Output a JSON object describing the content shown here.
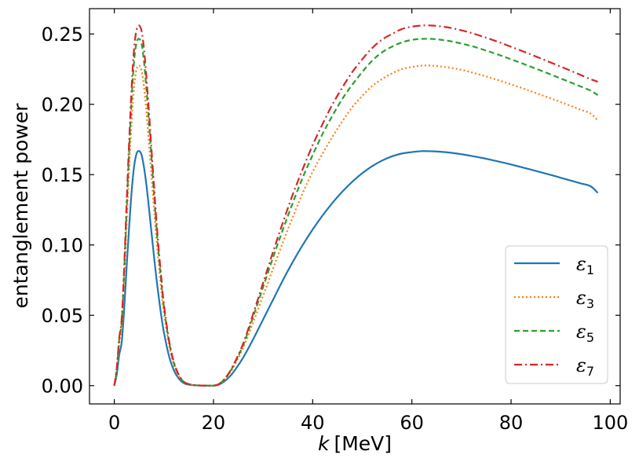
{
  "chart_data": {
    "type": "line",
    "title": "",
    "xlabel_var": "k",
    "xlabel_unit": "[MeV]",
    "ylabel": "entanglement power",
    "xlim": [
      -5,
      102
    ],
    "ylim": [
      -0.013,
      0.268
    ],
    "xticks": [
      0,
      20,
      40,
      60,
      80,
      100
    ],
    "xtick_labels": [
      "0",
      "20",
      "40",
      "60",
      "80",
      "100"
    ],
    "yticks": [
      0.0,
      0.05,
      0.1,
      0.15,
      0.2,
      0.25
    ],
    "ytick_labels": [
      "0.00",
      "0.05",
      "0.10",
      "0.15",
      "0.20",
      "0.25"
    ],
    "legend_position": "lower-right",
    "x": [
      0,
      0.5,
      1,
      1.5,
      2,
      2.5,
      3,
      3.5,
      4,
      4.5,
      5,
      5.5,
      6,
      6.5,
      7,
      7.5,
      8,
      8.5,
      9,
      9.5,
      10,
      11,
      12,
      13,
      14,
      15,
      16,
      17,
      18,
      19,
      19.5,
      20,
      21,
      22,
      23,
      24,
      26,
      28,
      30,
      32,
      34,
      36,
      38,
      40,
      42,
      44,
      46,
      48,
      50,
      52,
      54,
      56,
      58,
      60,
      62,
      64,
      66,
      68,
      70,
      72,
      74,
      76,
      78,
      80,
      82,
      84,
      86,
      88,
      90,
      92,
      94,
      96,
      97.5
    ],
    "series": [
      {
        "name": "ε",
        "subscript": "1",
        "color": "#1f77b4",
        "dash": "solid",
        "values": [
          0.0,
          0.008,
          0.022,
          0.031,
          0.055,
          0.085,
          0.113,
          0.138,
          0.156,
          0.165,
          0.1668,
          0.164,
          0.155,
          0.142,
          0.126,
          0.109,
          0.092,
          0.076,
          0.062,
          0.049,
          0.038,
          0.0215,
          0.011,
          0.005,
          0.0018,
          0.0007,
          0.0003,
          0.0001,
          3e-05,
          0.0,
          0.0,
          0.0,
          0.0006,
          0.0025,
          0.0055,
          0.0095,
          0.02,
          0.033,
          0.047,
          0.061,
          0.075,
          0.088,
          0.1,
          0.111,
          0.121,
          0.13,
          0.138,
          0.145,
          0.151,
          0.156,
          0.16,
          0.163,
          0.165,
          0.166,
          0.1667,
          0.1666,
          0.1662,
          0.1655,
          0.1645,
          0.1633,
          0.162,
          0.1605,
          0.1589,
          0.1572,
          0.1554,
          0.1536,
          0.1517,
          0.1498,
          0.1478,
          0.1458,
          0.1438,
          0.1418,
          0.137
        ]
      },
      {
        "name": "ε",
        "subscript": "3",
        "color": "#ff7f0e",
        "dash": "dotted",
        "values": [
          0.0,
          0.011,
          0.03,
          0.042,
          0.075,
          0.116,
          0.154,
          0.188,
          0.213,
          0.225,
          0.2275,
          0.224,
          0.212,
          0.194,
          0.172,
          0.149,
          0.126,
          0.104,
          0.085,
          0.067,
          0.052,
          0.0295,
          0.015,
          0.0068,
          0.0025,
          0.001,
          0.0004,
          0.00014,
          4e-05,
          0.0,
          0.0,
          0.0,
          0.0008,
          0.0034,
          0.0075,
          0.013,
          0.027,
          0.045,
          0.064,
          0.083,
          0.102,
          0.12,
          0.137,
          0.152,
          0.165,
          0.177,
          0.188,
          0.198,
          0.206,
          0.213,
          0.218,
          0.222,
          0.225,
          0.2265,
          0.2275,
          0.2275,
          0.2268,
          0.2258,
          0.2245,
          0.2228,
          0.2208,
          0.2187,
          0.2165,
          0.2142,
          0.2118,
          0.2093,
          0.2068,
          0.2042,
          0.2016,
          0.1989,
          0.1962,
          0.1935,
          0.1885
        ]
      },
      {
        "name": "ε",
        "subscript": "5",
        "color": "#2ca02c",
        "dash": "dashed",
        "values": [
          0.0,
          0.012,
          0.033,
          0.046,
          0.082,
          0.126,
          0.167,
          0.204,
          0.231,
          0.244,
          0.2465,
          0.243,
          0.23,
          0.21,
          0.187,
          0.162,
          0.137,
          0.113,
          0.092,
          0.073,
          0.056,
          0.032,
          0.0163,
          0.0074,
          0.0027,
          0.0011,
          0.00045,
          0.00015,
          4e-05,
          0.0,
          0.0,
          0.0,
          0.0009,
          0.0037,
          0.0081,
          0.014,
          0.029,
          0.049,
          0.07,
          0.091,
          0.111,
          0.13,
          0.148,
          0.164,
          0.179,
          0.192,
          0.204,
          0.214,
          0.223,
          0.231,
          0.237,
          0.241,
          0.244,
          0.2458,
          0.2465,
          0.2465,
          0.2458,
          0.2447,
          0.2432,
          0.2414,
          0.2393,
          0.237,
          0.2346,
          0.232,
          0.2294,
          0.2267,
          0.224,
          0.2212,
          0.2184,
          0.2156,
          0.2127,
          0.2098,
          0.2065
        ]
      },
      {
        "name": "ε",
        "subscript": "7",
        "color": "#d62728",
        "dash": "dashdot",
        "values": [
          0.0,
          0.0125,
          0.034,
          0.048,
          0.085,
          0.131,
          0.174,
          0.212,
          0.24,
          0.253,
          0.256,
          0.252,
          0.239,
          0.218,
          0.194,
          0.168,
          0.142,
          0.117,
          0.095,
          0.076,
          0.058,
          0.033,
          0.0169,
          0.0077,
          0.0028,
          0.0011,
          0.00047,
          0.00016,
          4e-05,
          0.0,
          0.0,
          0.0,
          0.00095,
          0.0039,
          0.0084,
          0.0145,
          0.03,
          0.051,
          0.073,
          0.095,
          0.116,
          0.136,
          0.154,
          0.171,
          0.186,
          0.2,
          0.212,
          0.223,
          0.232,
          0.24,
          0.246,
          0.25,
          0.2535,
          0.2552,
          0.256,
          0.256,
          0.2553,
          0.2542,
          0.2526,
          0.2507,
          0.2485,
          0.2461,
          0.2436,
          0.2409,
          0.2382,
          0.2354,
          0.2326,
          0.2297,
          0.2268,
          0.2239,
          0.2209,
          0.2179,
          0.216
        ]
      }
    ]
  }
}
